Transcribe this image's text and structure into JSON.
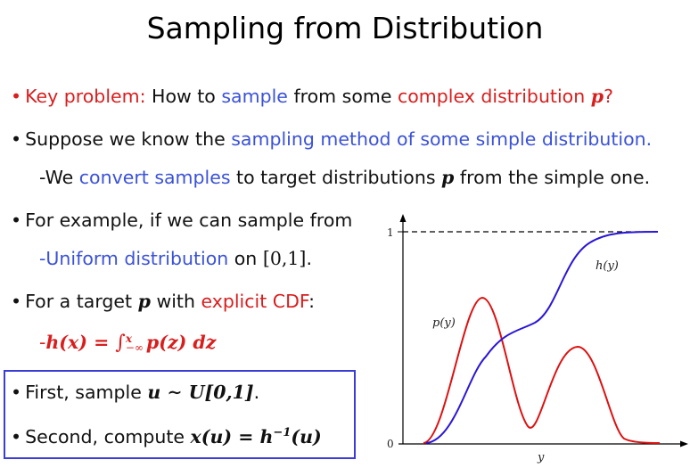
{
  "title": "Sampling from Distribution",
  "b1": {
    "key": "Key problem:",
    "t1": " How to ",
    "sample": "sample",
    "t2": " from some ",
    "complex": "complex distribution ",
    "p": "p",
    "q": "?"
  },
  "b2": {
    "t1": "Suppose we know the ",
    "blue": "sampling method of some simple distribution",
    "dot": "."
  },
  "b2s": {
    "dash": "-",
    "t1": "We ",
    "blue": "convert samples",
    "t2": " to target distributions ",
    "p": "p",
    "t3": " from the simple one."
  },
  "b3": {
    "t1": "For example, if we can sample from"
  },
  "b3s": {
    "dash": "-",
    "blue": "Uniform distribution",
    "t1": " on ",
    "range": "[0,1]",
    "dot": "."
  },
  "b4": {
    "t1": "For a target ",
    "p": "p",
    "t2": " with ",
    "red": "explicit CDF",
    "colon": ":"
  },
  "b4s": {
    "dash": "-",
    "lhs": "h(x) = ",
    "int": "∫",
    "sup": "x",
    "sub": "−∞",
    "rhs": "p(z) dz"
  },
  "b5": {
    "t1": "First, sample ",
    "math": "u ∼ U[0,1]",
    "dot": "."
  },
  "b6": {
    "t1": "Second, compute ",
    "math": "x(u) = h",
    "sup": "−1",
    "math2": "(u)"
  },
  "diagram": {
    "label_one": "1",
    "label_zero": "0",
    "label_p": "p(y)",
    "label_h": "h(y)",
    "label_y": "y",
    "color_p": "#dd1111",
    "color_h": "#2a16d6"
  }
}
